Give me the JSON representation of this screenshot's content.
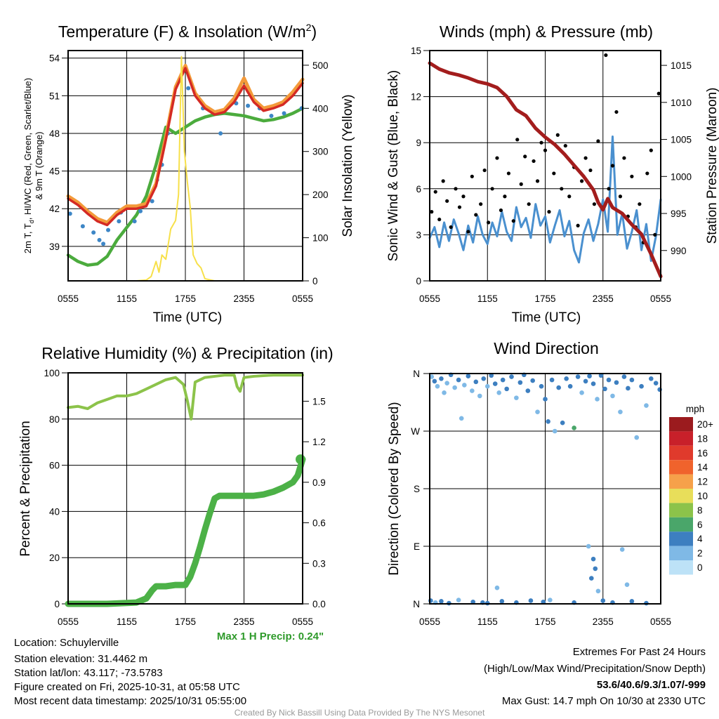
{
  "footer": {
    "location": "Location: Schuylerville",
    "elevation": "Station elevation: 31.4462 m",
    "latlon": "Station lat/lon: 43.117; -73.5783",
    "created": "Figure created on Fri, 2025-10-31, at 05:58 UTC",
    "recent": "Most recent data timestamp: 2025/10/31 05:55:00",
    "extremes_title": "Extremes For Past 24 Hours",
    "extremes_sub": "(High/Low/Max Wind/Precipitation/Snow Depth)",
    "extremes_values": "53.6/40.6/9.3/1.07/-999",
    "max_gust": "Max Gust: 14.7 mph On 10/30 at 2330 UTC",
    "credit": "Created By Nick Bassill Using Data Provided By The NYS Mesonet",
    "max_precip": "Max 1 H Precip: 0.24\""
  },
  "chart_data": [
    {
      "type": "line",
      "id": "temp",
      "title_a": "Temperature (F) & Insolation (W/m",
      "title_sup": "2",
      "title_b": ")",
      "ylabel_a": "2m T, T",
      "ylabel_sub": "d",
      "ylabel_b": ", HI/WC (Red, Green, Scarlet/Blue)",
      "ylabel2": "& 9m T (Orange)",
      "y2label": "Solar Insolation (Yellow)",
      "xlabel": "Time (UTC)",
      "xticks": [
        0,
        6,
        12,
        18,
        24
      ],
      "xticklabels": [
        "0555",
        "1155",
        "1755",
        "2355",
        "0555"
      ],
      "ylim": [
        36.25,
        54.6
      ],
      "yticks": [
        39,
        42,
        45,
        48,
        51,
        54
      ],
      "y2lim": [
        0,
        534
      ],
      "y2ticks": [
        0,
        100,
        200,
        300,
        400,
        500
      ],
      "x": [
        0,
        1,
        2,
        3,
        4,
        5,
        6,
        7,
        8,
        9,
        10,
        11,
        12,
        13,
        14,
        15,
        16,
        17,
        18,
        19,
        20,
        21,
        22,
        23,
        24
      ],
      "series": [
        {
          "name": "9m T",
          "color": "#f39a3a",
          "values": [
            43.0,
            42.5,
            41.8,
            41.2,
            40.9,
            41.7,
            42.2,
            42.2,
            42.4,
            44.0,
            47.7,
            51.7,
            53.4,
            51.2,
            50.2,
            49.7,
            49.9,
            50.8,
            52.4,
            50.7,
            50.0,
            50.2,
            50.5,
            51.3,
            52.3
          ]
        },
        {
          "name": "2m T",
          "color": "#d42a24",
          "values": [
            42.8,
            42.3,
            41.6,
            41.0,
            40.7,
            41.5,
            42.0,
            42.0,
            42.2,
            43.8,
            47.5,
            51.5,
            53.2,
            51.0,
            50.0,
            49.5,
            49.7,
            50.5,
            51.8,
            50.5,
            49.8,
            50.0,
            50.3,
            51.0,
            52.0
          ]
        },
        {
          "name": "Td",
          "color": "#4bab3d",
          "values": [
            38.3,
            37.8,
            37.5,
            37.6,
            38.2,
            39.5,
            40.5,
            41.5,
            43.0,
            45.5,
            48.5,
            48.0,
            48.5,
            49.0,
            49.3,
            49.5,
            49.6,
            49.5,
            49.4,
            49.2,
            49.0,
            49.1,
            49.3,
            49.6,
            50.0
          ]
        }
      ],
      "hiwc_points": {
        "color": "#3d86c6",
        "x": [
          0.2,
          1.5,
          2.6,
          3.2,
          3.6,
          4.1,
          5.2,
          5.4,
          6.8,
          7.4,
          8.6,
          9.1,
          9.6,
          10.2,
          12.3,
          13.8,
          15.6,
          17.2,
          18.4,
          19.6,
          20.8,
          22.1,
          23.9
        ],
        "y": [
          41.6,
          40.6,
          40.1,
          39.5,
          39.2,
          40.3,
          41.0,
          41.7,
          41.0,
          41.8,
          42.6,
          44.3,
          45.5,
          48.0,
          51.6,
          50.0,
          48.0,
          50.4,
          50.2,
          50.0,
          49.4,
          49.6,
          50.0
        ]
      },
      "solar": {
        "color": "#f7e04a",
        "x": [
          0,
          7,
          8,
          8.5,
          9,
          9.3,
          9.6,
          10,
          10.5,
          11,
          11.3,
          11.6,
          11.9,
          12.2,
          12.5,
          12.8,
          13.2,
          13.6,
          14,
          15,
          24
        ],
        "values": [
          0,
          0,
          2,
          10,
          45,
          20,
          60,
          50,
          120,
          140,
          200,
          520,
          300,
          230,
          170,
          60,
          40,
          30,
          5,
          0,
          0
        ]
      }
    },
    {
      "type": "line",
      "id": "wind",
      "title": "Winds (mph) & Pressure (mb)",
      "ylabel": "Sonic Wind & Gust (Blue, Black)",
      "y2label": "Station Pressure (Maroon)",
      "xlabel": "Time (UTC)",
      "xticks": [
        0,
        6,
        12,
        18,
        24
      ],
      "xticklabels": [
        "0555",
        "1155",
        "1755",
        "2355",
        "0555"
      ],
      "ylim": [
        0,
        15
      ],
      "yticks": [
        0,
        3,
        6,
        9,
        12,
        15
      ],
      "y2lim": [
        985.9,
        1017.0
      ],
      "y2ticks": [
        990,
        995,
        1000,
        1005,
        1010,
        1015
      ],
      "speed": {
        "color": "#4a90cf",
        "x": [
          0,
          0.5,
          1,
          1.5,
          2,
          2.5,
          3,
          3.5,
          4,
          4.5,
          5,
          5.5,
          6,
          6.5,
          7,
          7.5,
          8,
          8.5,
          9,
          9.5,
          10,
          10.5,
          11,
          11.5,
          12,
          12.5,
          13,
          13.5,
          14,
          14.5,
          15,
          15.5,
          16,
          16.5,
          17,
          17.5,
          18,
          18.5,
          19,
          19.5,
          20,
          20.5,
          21,
          21.5,
          22,
          22.5,
          23,
          23.5,
          24
        ],
        "values": [
          2.8,
          3.5,
          2.2,
          3.8,
          2.6,
          4.0,
          3.1,
          2.0,
          3.6,
          2.5,
          4.2,
          3.0,
          2.4,
          3.8,
          2.9,
          4.5,
          3.2,
          2.6,
          4.8,
          3.5,
          4.1,
          2.8,
          5.0,
          3.6,
          4.2,
          2.5,
          3.6,
          4.6,
          2.9,
          3.9,
          2.0,
          1.2,
          3.1,
          4.0,
          2.6,
          3.7,
          5.3,
          3.2,
          9.4,
          3.0,
          4.4,
          2.1,
          3.2,
          4.6,
          2.0,
          3.7,
          1.3,
          2.9,
          5.3
        ]
      },
      "gust": {
        "color": "#000000",
        "x": [
          0.2,
          0.6,
          1.0,
          1.4,
          1.8,
          2.2,
          2.7,
          3.1,
          3.5,
          4.0,
          4.4,
          4.8,
          5.3,
          5.7,
          6.1,
          6.5,
          7.0,
          7.4,
          7.8,
          8.2,
          8.7,
          9.1,
          9.5,
          9.9,
          10.3,
          10.8,
          11.2,
          11.6,
          12.0,
          12.4,
          12.9,
          13.3,
          13.7,
          14.1,
          14.5,
          15.0,
          15.4,
          15.8,
          16.2,
          16.7,
          17.1,
          17.5,
          17.9,
          18.3,
          18.6,
          19.0,
          19.4,
          19.8,
          20.2,
          20.6,
          21.0,
          21.4,
          21.8,
          22.2,
          22.6,
          23.0,
          23.4,
          23.8
        ],
        "values": [
          4.5,
          5.8,
          4.0,
          6.5,
          5.2,
          3.5,
          6.0,
          4.8,
          5.5,
          3.2,
          6.8,
          4.3,
          5.0,
          7.2,
          3.8,
          6.0,
          8.0,
          4.6,
          5.5,
          7.0,
          3.9,
          9.2,
          6.3,
          8.1,
          5.0,
          7.8,
          6.5,
          9.0,
          8.5,
          4.5,
          7.0,
          9.5,
          6.0,
          8.8,
          5.5,
          7.4,
          3.6,
          6.5,
          8.0,
          7.2,
          5.0,
          9.1,
          4.8,
          14.7,
          6.0,
          7.5,
          11.0,
          5.5,
          8.0,
          4.2,
          6.8,
          3.5,
          5.0,
          2.5,
          7.0,
          8.5,
          3.0,
          12.2
        ]
      },
      "pressure": {
        "color": "#a31d1d",
        "x": [
          0,
          1,
          2,
          3,
          4,
          5,
          6,
          7,
          8,
          9,
          10,
          11,
          12,
          13,
          14,
          15,
          16,
          17,
          17.5,
          18,
          18.5,
          19,
          20,
          21,
          22,
          23,
          24
        ],
        "values": [
          1015.3,
          1014.5,
          1014.0,
          1013.7,
          1013.3,
          1012.8,
          1012.5,
          1012.0,
          1010.8,
          1009.0,
          1008.2,
          1006.5,
          1005.3,
          1004.3,
          1003.0,
          1001.5,
          1000.0,
          998.2,
          996.5,
          995.5,
          997.0,
          995.8,
          995.0,
          993.5,
          992.2,
          989.5,
          986.5
        ]
      }
    },
    {
      "type": "line",
      "id": "rh",
      "title": "Relative Humidity (%) & Precipitation (in)",
      "ylabel": "Percent & Precipitation",
      "xlabel": "",
      "xticks": [
        0,
        6,
        12,
        18,
        24
      ],
      "xticklabels": [
        "0555",
        "1155",
        "1755",
        "2355",
        "0555"
      ],
      "ylim": [
        0,
        100
      ],
      "yticks": [
        0,
        20,
        40,
        60,
        80,
        100
      ],
      "y2lim": [
        0,
        1.71
      ],
      "y2ticks": [
        0,
        0.3,
        0.6,
        0.9,
        1.2,
        1.5
      ],
      "y2ticklabels": [
        "0.0",
        "0.3",
        "0.6",
        "0.9",
        "1.2",
        "1.5"
      ],
      "rh": {
        "color": "#8cc34a",
        "x": [
          0,
          1,
          2,
          3,
          4,
          5,
          6,
          7,
          8,
          9,
          10,
          11,
          11.8,
          12.2,
          12.6,
          13,
          14,
          15,
          16,
          17,
          17.3,
          17.6,
          18,
          19,
          20,
          21,
          22,
          23,
          24
        ],
        "values": [
          85,
          85.5,
          84.5,
          87,
          88.5,
          90,
          90,
          91,
          93,
          95,
          97,
          98,
          95,
          88,
          80,
          96,
          98,
          98.5,
          99,
          99,
          94,
          92,
          98,
          98.5,
          98.8,
          99,
          99,
          99,
          99
        ]
      },
      "precip": {
        "color": "#4cb147",
        "x": [
          0,
          4,
          7,
          8,
          8.6,
          9,
          10,
          11,
          12,
          12.5,
          13,
          13.5,
          14,
          14.5,
          15,
          15.5,
          16,
          17,
          18,
          19,
          20,
          21,
          22,
          23,
          23.5,
          24
        ],
        "values": [
          0.0,
          0.0,
          0.01,
          0.04,
          0.1,
          0.13,
          0.13,
          0.14,
          0.14,
          0.2,
          0.3,
          0.42,
          0.55,
          0.67,
          0.78,
          0.8,
          0.8,
          0.8,
          0.8,
          0.8,
          0.81,
          0.83,
          0.86,
          0.9,
          0.95,
          1.07
        ]
      }
    },
    {
      "type": "scatter",
      "id": "dir",
      "title": "Wind Direction",
      "ylabel": "Direction (Colored By Speed)",
      "xticks": [
        0,
        6,
        12,
        18,
        24
      ],
      "xticklabels": [
        "0555",
        "1155",
        "1755",
        "2355",
        "0555"
      ],
      "ylim": [
        0,
        360
      ],
      "yticks": [
        0,
        90,
        180,
        270,
        360
      ],
      "yticklabels": [
        "N",
        "E",
        "S",
        "W",
        "N"
      ],
      "legend_title": "mph",
      "legend_labels": [
        "20+",
        "18",
        "16",
        "14",
        "12",
        "10",
        "8",
        "6",
        "4",
        "2",
        "0"
      ],
      "legend_colors": [
        "#9b1b1e",
        "#c8202a",
        "#e03a2c",
        "#f0632c",
        "#f6a14a",
        "#e8de5a",
        "#8cc34a",
        "#4aa66a",
        "#3d7fc0",
        "#7fb9e6",
        "#bde2f7"
      ],
      "points": [
        [
          0.2,
          355,
          2
        ],
        [
          0.5,
          348,
          3
        ],
        [
          0.8,
          340,
          2
        ],
        [
          1.2,
          352,
          4
        ],
        [
          1.5,
          330,
          1
        ],
        [
          1.8,
          345,
          2
        ],
        [
          2.2,
          358,
          3
        ],
        [
          2.6,
          338,
          2
        ],
        [
          3.0,
          350,
          4
        ],
        [
          3.3,
          290,
          1
        ],
        [
          3.6,
          342,
          2
        ],
        [
          4.0,
          356,
          3
        ],
        [
          4.4,
          333,
          2
        ],
        [
          4.8,
          347,
          4
        ],
        [
          5.2,
          325,
          1
        ],
        [
          5.6,
          352,
          3
        ],
        [
          6.0,
          340,
          2
        ],
        [
          6.4,
          357,
          4
        ],
        [
          6.8,
          344,
          3
        ],
        [
          7.2,
          330,
          2
        ],
        [
          7.6,
          350,
          4
        ],
        [
          8.0,
          336,
          3
        ],
        [
          8.5,
          355,
          4
        ],
        [
          9.0,
          322,
          2
        ],
        [
          9.4,
          346,
          3
        ],
        [
          9.8,
          358,
          4
        ],
        [
          10.2,
          333,
          3
        ],
        [
          10.7,
          349,
          4
        ],
        [
          11.2,
          300,
          2
        ],
        [
          11.6,
          340,
          3
        ],
        [
          12.0,
          320,
          4
        ],
        [
          12.3,
          285,
          3
        ],
        [
          12.7,
          350,
          4
        ],
        [
          13.0,
          270,
          2
        ],
        [
          13.4,
          338,
          3
        ],
        [
          13.8,
          283,
          4
        ],
        [
          14.2,
          352,
          3
        ],
        [
          14.6,
          340,
          4
        ],
        [
          15.0,
          275,
          6
        ],
        [
          15.4,
          355,
          3
        ],
        [
          15.8,
          330,
          2
        ],
        [
          16.2,
          348,
          4
        ],
        [
          16.6,
          356,
          3
        ],
        [
          17.0,
          344,
          4
        ],
        [
          17.4,
          320,
          2
        ],
        [
          17.8,
          357,
          3
        ],
        [
          18.2,
          336,
          4
        ],
        [
          18.6,
          350,
          3
        ],
        [
          19.0,
          325,
          2
        ],
        [
          19.4,
          346,
          4
        ],
        [
          19.8,
          300,
          2
        ],
        [
          20.2,
          355,
          4
        ],
        [
          20.6,
          337,
          3
        ],
        [
          21.0,
          350,
          4
        ],
        [
          21.5,
          260,
          2
        ],
        [
          22.0,
          340,
          3
        ],
        [
          22.5,
          310,
          2
        ],
        [
          23.0,
          352,
          4
        ],
        [
          23.5,
          345,
          3
        ],
        [
          23.9,
          335,
          4
        ],
        [
          0.1,
          5,
          3
        ],
        [
          0.6,
          2,
          2
        ],
        [
          1.2,
          4,
          4
        ],
        [
          2.0,
          1,
          3
        ],
        [
          3.0,
          6,
          2
        ],
        [
          4.5,
          3,
          4
        ],
        [
          5.5,
          2,
          3
        ],
        [
          6.0,
          1,
          3
        ],
        [
          7.0,
          25,
          2
        ],
        [
          7.5,
          4,
          4
        ],
        [
          9.0,
          2,
          3
        ],
        [
          10.5,
          5,
          4
        ],
        [
          11.8,
          3,
          3
        ],
        [
          12.5,
          6,
          2
        ],
        [
          15.0,
          2,
          3
        ],
        [
          16.5,
          90,
          2
        ],
        [
          16.8,
          40,
          4
        ],
        [
          17.0,
          70,
          4
        ],
        [
          17.2,
          55,
          3
        ],
        [
          17.5,
          20,
          2
        ],
        [
          18.0,
          5,
          3
        ],
        [
          19.0,
          2,
          4
        ],
        [
          20.0,
          85,
          2
        ],
        [
          20.5,
          30,
          2
        ],
        [
          21.0,
          4,
          3
        ],
        [
          22.5,
          1,
          4
        ]
      ]
    }
  ]
}
